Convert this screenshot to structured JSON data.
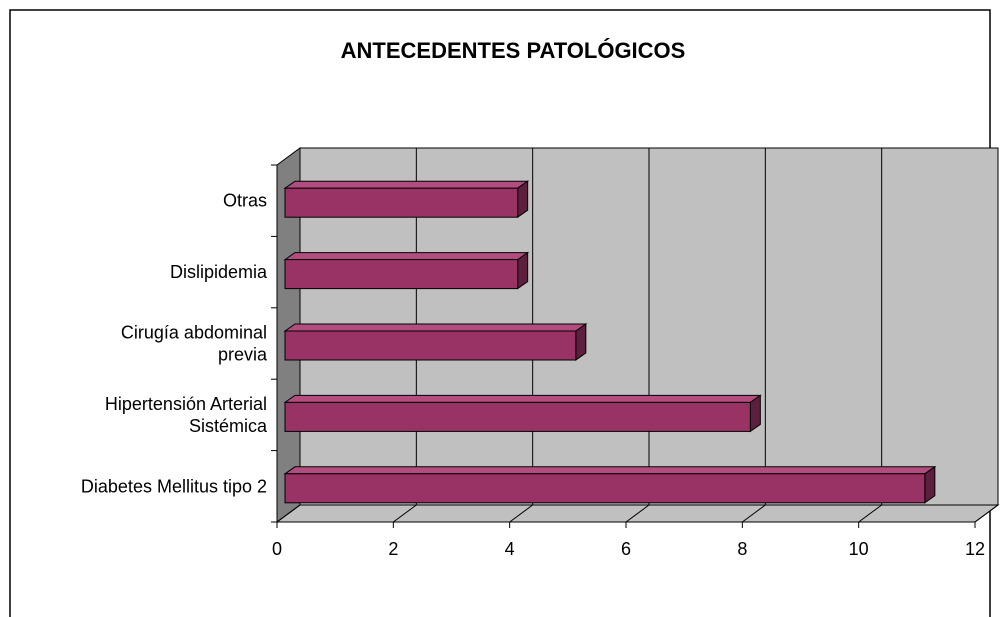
{
  "chart_data": {
    "type": "bar3d_horizontal",
    "title": "ANTECEDENTES PATOLÓGICOS",
    "categories": [
      "Diabetes Mellitus tipo 2",
      "Hipertensión Arterial\nSistémica",
      "Cirugía abdominal\nprevia",
      "Dislipidemia",
      "Otras"
    ],
    "values": [
      11,
      8,
      5,
      4,
      4
    ],
    "color": "#993366",
    "xlim": [
      0,
      12
    ],
    "xticks": [
      0,
      2,
      4,
      6,
      8,
      10,
      12
    ],
    "grid": true
  }
}
